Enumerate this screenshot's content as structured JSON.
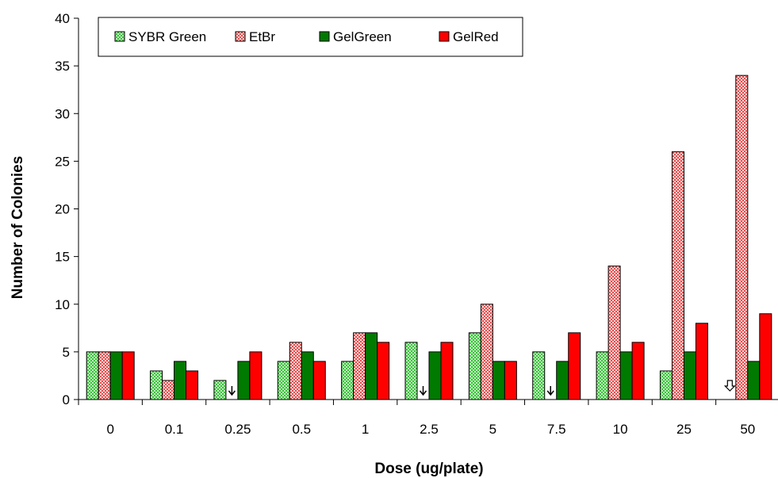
{
  "chart_data": {
    "type": "bar",
    "title": "",
    "xlabel": "Dose (ug/plate)",
    "ylabel": "Number of Colonies",
    "ylim": [
      0,
      40
    ],
    "yticks": [
      "0",
      "5",
      "10",
      "15",
      "20",
      "25",
      "30",
      "35",
      "40"
    ],
    "categories": [
      "0",
      "0.1",
      "0.25",
      "0.5",
      "1",
      "2.5",
      "5",
      "7.5",
      "10",
      "25",
      "50"
    ],
    "grid": false,
    "legend_position": "top",
    "series": [
      {
        "name": "SYBR Green",
        "color": "#8fe08f",
        "pattern": "dotted-light-green",
        "values": [
          5,
          3,
          2,
          4,
          4,
          6,
          7,
          5,
          5,
          3,
          null
        ]
      },
      {
        "name": "EtBr",
        "color": "#f08080",
        "pattern": "dotted-pink",
        "values": [
          5,
          2,
          null,
          6,
          7,
          null,
          10,
          null,
          14,
          26,
          34
        ]
      },
      {
        "name": "GelGreen",
        "color": "#007a00",
        "pattern": "solid",
        "values": [
          5,
          4,
          4,
          5,
          7,
          5,
          4,
          4,
          5,
          5,
          4
        ]
      },
      {
        "name": "GelRed",
        "color": "#ff0000",
        "pattern": "solid",
        "values": [
          5,
          3,
          5,
          4,
          6,
          6,
          4,
          7,
          6,
          8,
          9
        ]
      }
    ],
    "markers": [
      {
        "category": "0.25",
        "series": "EtBr",
        "icon": "down-arrow-icon"
      },
      {
        "category": "2.5",
        "series": "EtBr",
        "icon": "down-arrow-icon"
      },
      {
        "category": "7.5",
        "series": "EtBr",
        "icon": "down-arrow-icon"
      },
      {
        "category": "50",
        "series": "SYBR Green",
        "icon": "hollow-down-arrow-icon"
      }
    ]
  }
}
